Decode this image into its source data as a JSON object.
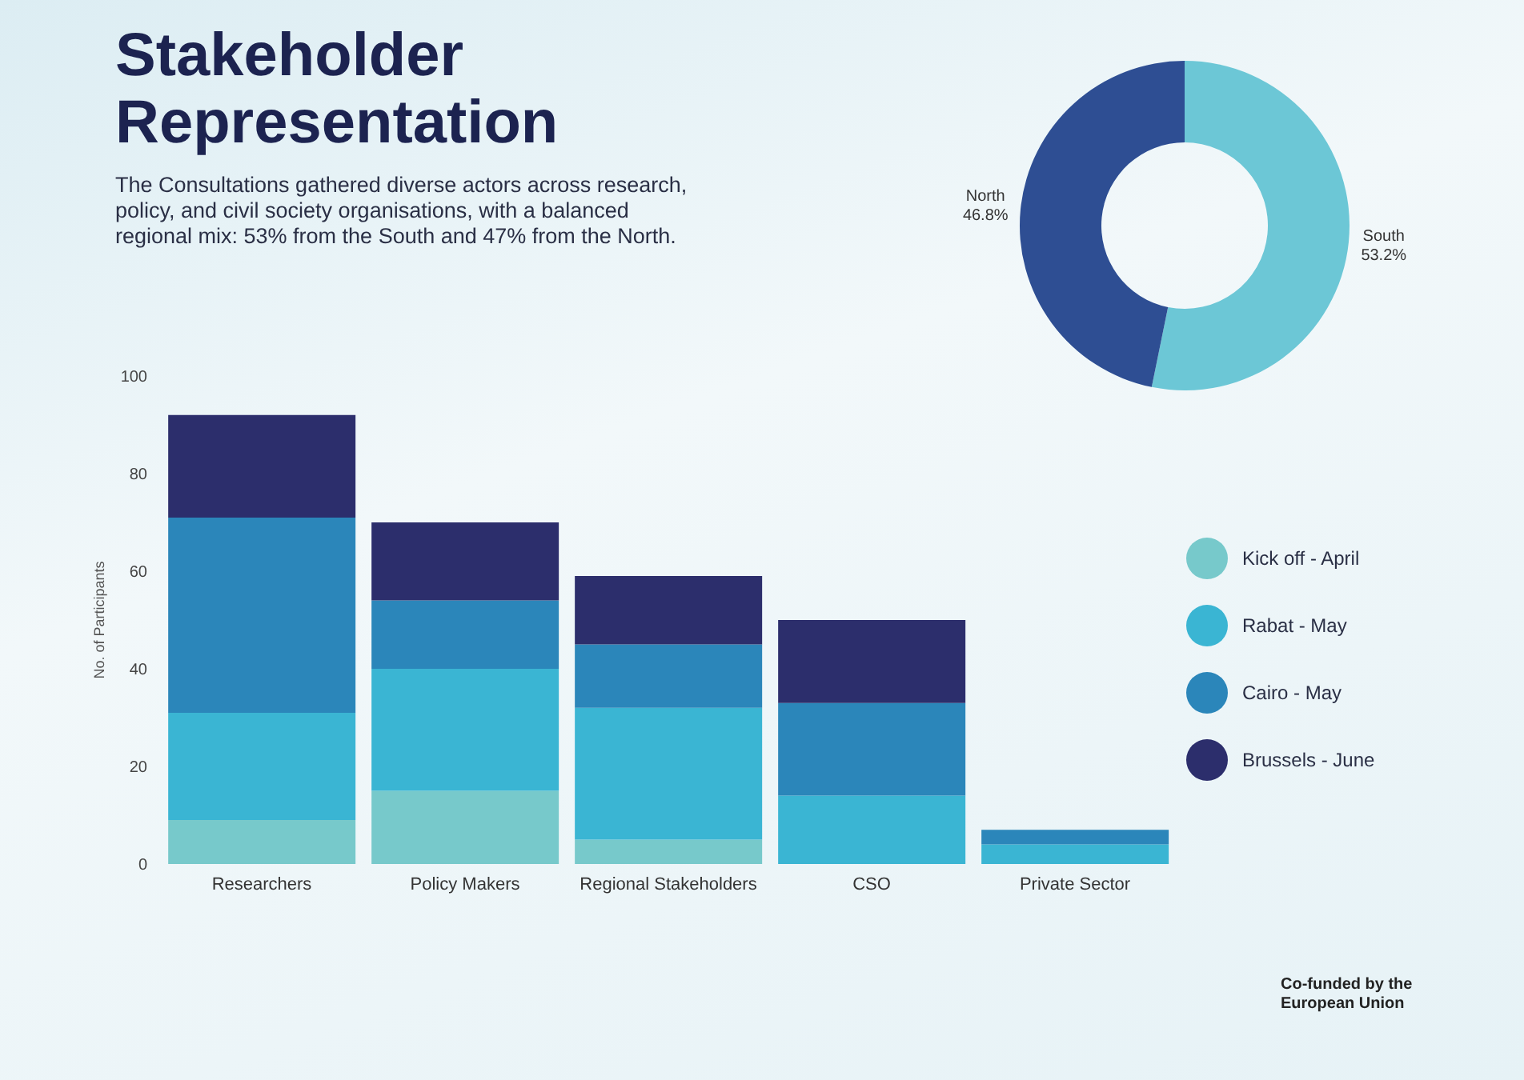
{
  "chart_data": [
    {
      "type": "bar",
      "title": "Stakeholder Representation",
      "subtitle": "The Consultations gathered diverse actors across research, policy, and civil society organisations, with a balanced regional mix: 53% from the South and 47% from the North.",
      "ylabel": "No. of Participants",
      "categories": [
        "Researchers",
        "Policy Makers",
        "Regional Stakeholders",
        "CSO",
        "Private Sector"
      ],
      "stacked": true,
      "series": [
        {
          "name": "Kick off - April",
          "color": "#77c9cb",
          "values": [
            9,
            15,
            5,
            0,
            0
          ]
        },
        {
          "name": "Rabat - May",
          "color": "#3ab5d3",
          "values": [
            22,
            25,
            27,
            14,
            4
          ]
        },
        {
          "name": "Cairo - May",
          "color": "#2b86ba",
          "values": [
            40,
            14,
            13,
            19,
            3
          ]
        },
        {
          "name": "Brussels - June",
          "color": "#2c2e6c",
          "values": [
            21,
            16,
            14,
            17,
            0
          ]
        }
      ],
      "ylim": [
        0,
        100
      ],
      "yticks": [
        0,
        20,
        40,
        60,
        80,
        100
      ],
      "grid": false,
      "legend": "right",
      "annotations": [
        "Co-funded by the European Union"
      ]
    },
    {
      "type": "donut",
      "categories": [
        "South",
        "North"
      ],
      "values": [
        53.2,
        46.8
      ],
      "colors": [
        "#6cc7d6",
        "#2e4e93"
      ],
      "value_labels": [
        "53.2%",
        "46.8%"
      ]
    }
  ]
}
